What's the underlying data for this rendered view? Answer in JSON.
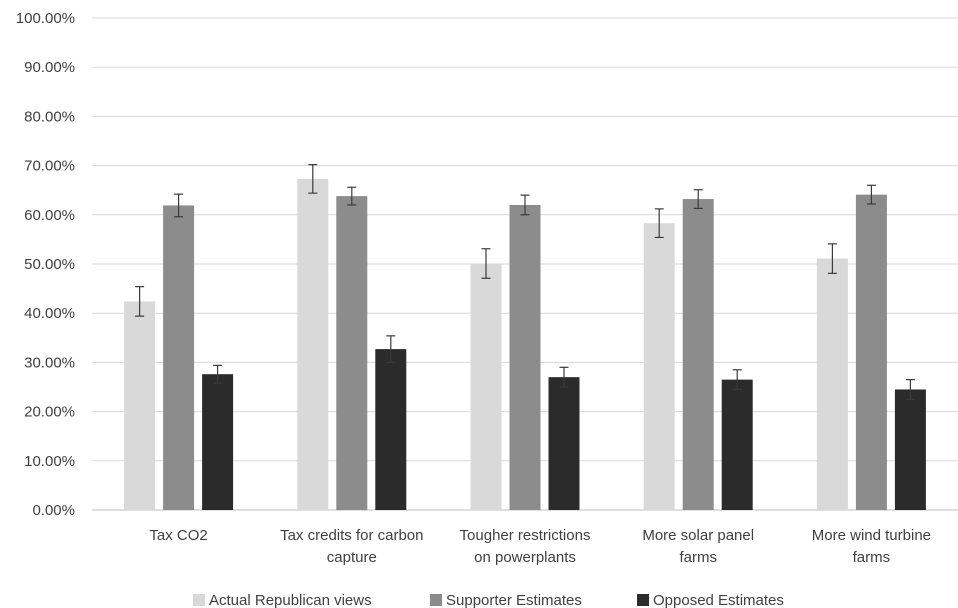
{
  "chart_data": {
    "type": "bar",
    "title": "",
    "xlabel": "",
    "ylabel": "",
    "ylim": [
      0,
      1
    ],
    "y_tick_labels": [
      "0.00%",
      "10.00%",
      "20.00%",
      "30.00%",
      "40.00%",
      "50.00%",
      "60.00%",
      "70.00%",
      "80.00%",
      "90.00%",
      "100.00%"
    ],
    "y_ticks": [
      0,
      0.1,
      0.2,
      0.3,
      0.4,
      0.5,
      0.6,
      0.7,
      0.8,
      0.9,
      1.0
    ],
    "grid": "horizontal",
    "legend_position": "bottom",
    "categories": [
      [
        "Tax CO2"
      ],
      [
        "Tax credits for carbon",
        "capture"
      ],
      [
        "Tougher restrictions",
        "on powerplants"
      ],
      [
        "More solar panel",
        "farms"
      ],
      [
        "More wind turbine",
        "farms"
      ]
    ],
    "series": [
      {
        "name": "Actual Republican views",
        "color": "#d9d9d9",
        "values": [
          0.424,
          0.673,
          0.501,
          0.583,
          0.511
        ],
        "error": [
          0.03,
          0.029,
          0.03,
          0.029,
          0.03
        ]
      },
      {
        "name": "Supporter Estimates",
        "color": "#8c8c8c",
        "values": [
          0.619,
          0.638,
          0.62,
          0.632,
          0.641
        ],
        "error": [
          0.023,
          0.018,
          0.02,
          0.019,
          0.019
        ]
      },
      {
        "name": "Opposed Estimates",
        "color": "#2b2b2b",
        "values": [
          0.276,
          0.327,
          0.27,
          0.265,
          0.245
        ],
        "error": [
          0.018,
          0.027,
          0.02,
          0.02,
          0.02
        ]
      }
    ]
  }
}
